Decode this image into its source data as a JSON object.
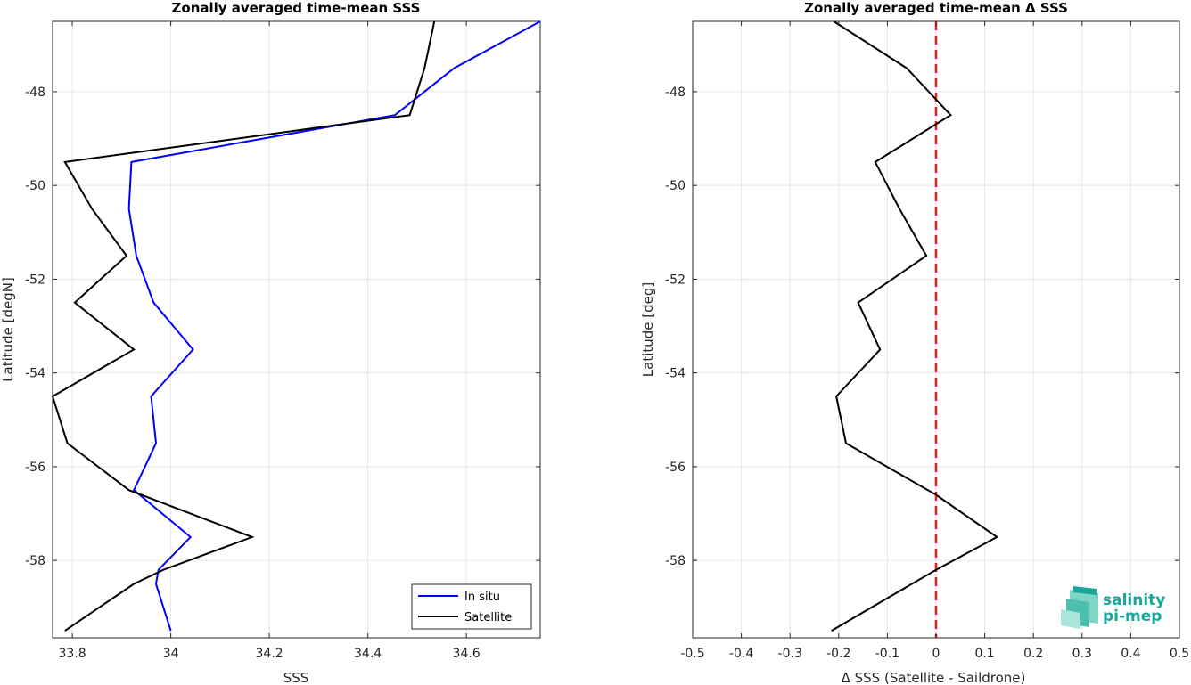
{
  "chart_data": [
    {
      "type": "line",
      "title": "Zonally averaged time-mean SSS",
      "xlabel": "SSS",
      "ylabel": "Latitude [degN]",
      "xlim": [
        33.76,
        34.75
      ],
      "ylim": [
        -59.65,
        -46.5
      ],
      "xticks": [
        "33.8",
        "34",
        "34.2",
        "34.4",
        "34.6"
      ],
      "xtick_values": [
        33.8,
        34.0,
        34.2,
        34.4,
        34.6
      ],
      "yticks": [
        "-48",
        "-50",
        "-52",
        "-54",
        "-56",
        "-58"
      ],
      "ytick_values": [
        -48,
        -50,
        -52,
        -54,
        -56,
        -58
      ],
      "grid": true,
      "legend_position": "bottom-right",
      "series": [
        {
          "name": "In situ",
          "color": "#0000ff",
          "x": [
            34.75,
            34.575,
            34.455,
            33.92,
            33.915,
            33.93,
            33.965,
            34.045,
            33.96,
            33.97,
            33.925,
            34.04,
            33.975,
            33.97,
            34.0
          ],
          "y": [
            -46.5,
            -47.5,
            -48.5,
            -49.5,
            -50.5,
            -51.5,
            -52.5,
            -53.5,
            -54.5,
            -55.5,
            -56.5,
            -57.5,
            -58.2,
            -58.5,
            -59.5
          ]
        },
        {
          "name": "Satellite",
          "color": "#000000",
          "x": [
            34.535,
            34.515,
            34.485,
            33.785,
            33.84,
            33.91,
            33.805,
            33.925,
            33.76,
            33.79,
            33.915,
            34.165,
            33.985,
            33.925,
            33.785
          ],
          "y": [
            -46.5,
            -47.5,
            -48.5,
            -49.5,
            -50.5,
            -51.5,
            -52.5,
            -53.5,
            -54.5,
            -55.5,
            -56.5,
            -57.5,
            -58.2,
            -58.5,
            -59.5
          ]
        }
      ]
    },
    {
      "type": "line",
      "title": "Zonally averaged time-mean Δ SSS",
      "xlabel": "Δ SSS (Satellite - Saildrone)",
      "ylabel": "Latitude [deg]",
      "xlim": [
        -0.5,
        0.5
      ],
      "ylim": [
        -59.65,
        -46.5
      ],
      "xticks": [
        "-0.5",
        "-0.4",
        "-0.3",
        "-0.2",
        "-0.1",
        "0",
        "0.1",
        "0.2",
        "0.3",
        "0.4",
        "0.5"
      ],
      "xtick_values": [
        -0.5,
        -0.4,
        -0.3,
        -0.2,
        -0.1,
        0,
        0.1,
        0.2,
        0.3,
        0.4,
        0.5
      ],
      "yticks": [
        "-48",
        "-50",
        "-52",
        "-54",
        "-56",
        "-58"
      ],
      "ytick_values": [
        -48,
        -50,
        -52,
        -54,
        -56,
        -58
      ],
      "grid": true,
      "reference_line": {
        "x": 0,
        "color": "#e41a1c",
        "style": "dashed"
      },
      "series": [
        {
          "color": "#000000",
          "x": [
            -0.21,
            -0.06,
            0.03,
            -0.125,
            -0.075,
            -0.02,
            -0.16,
            -0.115,
            -0.205,
            -0.185,
            0.0,
            0.125,
            0.0,
            -0.215
          ],
          "y": [
            -46.5,
            -47.5,
            -48.5,
            -49.5,
            -50.5,
            -51.5,
            -52.5,
            -53.5,
            -54.5,
            -55.5,
            -56.6,
            -57.5,
            -58.2,
            -59.5
          ]
        }
      ]
    }
  ],
  "logo": {
    "line1": "salinity",
    "line2": "pi-mep",
    "color": "#1aa69a"
  }
}
